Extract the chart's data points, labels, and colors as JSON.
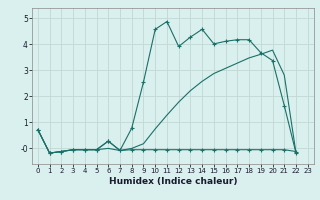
{
  "xlabel": "Humidex (Indice chaleur)",
  "bg_color": "#d9f0ee",
  "grid_color": "#c0d8d4",
  "line_color": "#1a7068",
  "xlim": [
    -0.5,
    23.5
  ],
  "ylim": [
    -0.6,
    5.4
  ],
  "yticks": [
    0,
    1,
    2,
    3,
    4,
    5
  ],
  "ytick_labels": [
    "-0",
    "1",
    "2",
    "3",
    "4",
    "5"
  ],
  "xticks": [
    0,
    1,
    2,
    3,
    4,
    5,
    6,
    7,
    8,
    9,
    10,
    11,
    12,
    13,
    14,
    15,
    16,
    17,
    18,
    19,
    20,
    21,
    22,
    23
  ],
  "series1_x": [
    0,
    1,
    2,
    3,
    4,
    5,
    6,
    7,
    8,
    9,
    10,
    11,
    12,
    13,
    14,
    15,
    16,
    17,
    18,
    19,
    20,
    21,
    22
  ],
  "series1_y": [
    0.72,
    -0.18,
    -0.12,
    -0.05,
    -0.05,
    -0.05,
    0.28,
    -0.08,
    -0.05,
    -0.05,
    -0.05,
    -0.05,
    -0.05,
    -0.05,
    -0.05,
    -0.05,
    -0.05,
    -0.05,
    -0.05,
    -0.05,
    -0.05,
    -0.05,
    -0.12
  ],
  "series2_x": [
    0,
    1,
    2,
    3,
    4,
    5,
    6,
    7,
    8,
    9,
    10,
    11,
    12,
    13,
    14,
    15,
    16,
    17,
    18,
    19,
    20,
    21,
    22
  ],
  "series2_y": [
    0.72,
    -0.18,
    -0.12,
    -0.05,
    -0.05,
    -0.05,
    0.28,
    -0.08,
    0.78,
    2.55,
    4.58,
    4.88,
    3.92,
    4.28,
    4.58,
    4.02,
    4.12,
    4.18,
    4.18,
    3.68,
    3.38,
    1.65,
    -0.18
  ],
  "series3_x": [
    0,
    1,
    2,
    3,
    4,
    5,
    6,
    7,
    8,
    9,
    10,
    11,
    12,
    13,
    14,
    15,
    16,
    17,
    18,
    19,
    20,
    21,
    22
  ],
  "series3_y": [
    0.72,
    -0.18,
    -0.12,
    -0.05,
    -0.05,
    -0.05,
    0.0,
    -0.08,
    0.0,
    0.18,
    0.75,
    1.28,
    1.78,
    2.22,
    2.58,
    2.88,
    3.08,
    3.28,
    3.48,
    3.62,
    3.78,
    2.82,
    -0.18
  ]
}
